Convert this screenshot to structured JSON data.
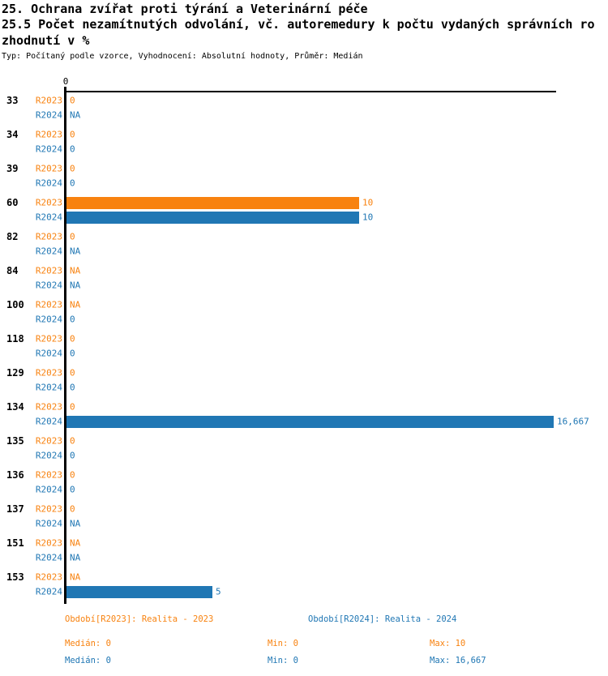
{
  "colors": {
    "series_2023": "#F8820F",
    "series_2024": "#2077B4",
    "axis": "#000000"
  },
  "chart_data": {
    "type": "bar",
    "orientation": "horizontal",
    "title": "25. Ochrana zvířat proti týrání a Veterinární péče",
    "subtitle_line1": "25.5 Počet nezamítnutých odvolání, vč. autoremedury k počtu vydaných správních ro",
    "subtitle_line2": "zhodnutí v %",
    "meta": "Typ: Počítaný podle vzorce, Vyhodnocení: Absolutní hodnoty, Průměr: Medián",
    "grid": false,
    "legend_position": "bottom",
    "x_axis": {
      "tick_labels": [
        "0"
      ],
      "range": [
        0,
        16.667
      ]
    },
    "categories": [
      "33",
      "34",
      "39",
      "60",
      "82",
      "84",
      "100",
      "118",
      "129",
      "134",
      "135",
      "136",
      "137",
      "151",
      "153"
    ],
    "series": [
      {
        "name": "R2023",
        "color": "#F8820F",
        "period_label": "Období[R2023]: Realita - 2023",
        "values": [
          0,
          0,
          0,
          10,
          0,
          null,
          null,
          0,
          0,
          0,
          0,
          0,
          0,
          null,
          null
        ],
        "value_labels": [
          "0",
          "0",
          "0",
          "10",
          "0",
          "NA",
          "NA",
          "0",
          "0",
          "0",
          "0",
          "0",
          "0",
          "NA",
          "NA"
        ],
        "stats": {
          "median": "Medián: 0",
          "min": "Min: 0",
          "max": "Max: 10"
        }
      },
      {
        "name": "R2024",
        "color": "#2077B4",
        "period_label": "Období[R2024]: Realita - 2024",
        "values": [
          null,
          0,
          0,
          10,
          null,
          null,
          0,
          0,
          0,
          16.667,
          0,
          0,
          null,
          null,
          5
        ],
        "value_labels": [
          "NA",
          "0",
          "0",
          "10",
          "NA",
          "NA",
          "0",
          "0",
          "0",
          "16,667",
          "0",
          "0",
          "NA",
          "NA",
          "5"
        ],
        "stats": {
          "median": "Medián: 0",
          "min": "Min: 0",
          "max": "Max: 16,667"
        }
      }
    ]
  }
}
